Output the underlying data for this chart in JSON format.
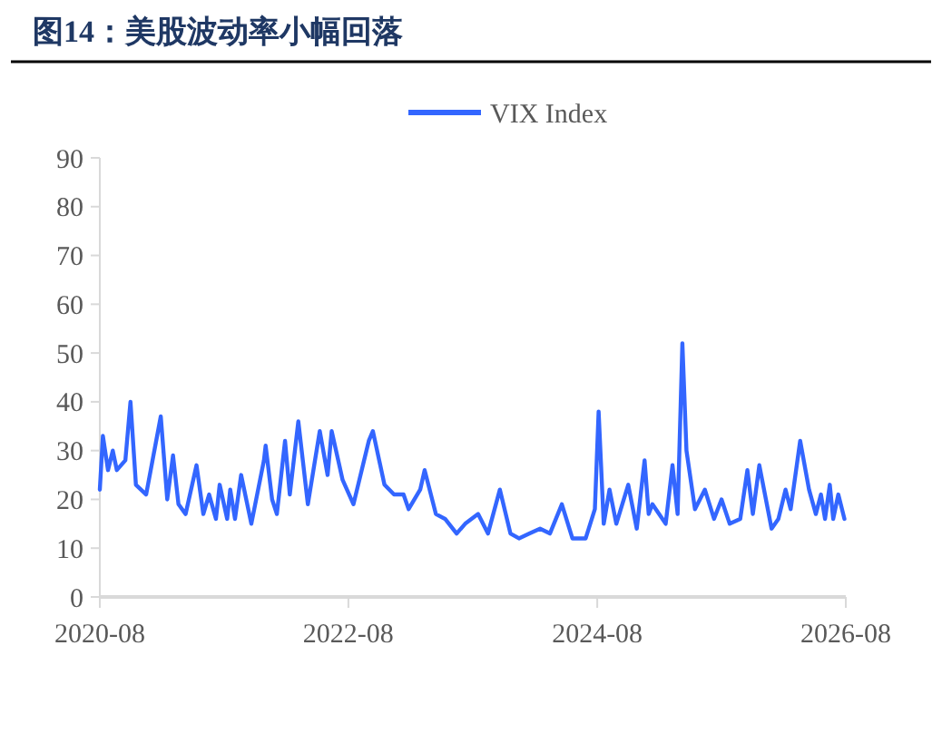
{
  "chart_data": {
    "type": "line",
    "title": "图14：美股波动率小幅回落",
    "x": [
      "2020-08-01",
      "2020-08-10",
      "2020-08-25",
      "2020-09-08",
      "2020-09-20",
      "2020-10-15",
      "2020-10-30",
      "2020-11-15",
      "2020-12-15",
      "2021-01-27",
      "2021-02-15",
      "2021-03-04",
      "2021-03-20",
      "2021-04-10",
      "2021-05-12",
      "2021-06-01",
      "2021-06-18",
      "2021-07-08",
      "2021-07-19",
      "2021-08-10",
      "2021-08-19",
      "2021-09-02",
      "2021-09-20",
      "2021-10-20",
      "2021-11-26",
      "2021-12-01",
      "2021-12-20",
      "2022-01-03",
      "2022-01-27",
      "2022-02-10",
      "2022-03-07",
      "2022-04-04",
      "2022-05-09",
      "2022-06-01",
      "2022-06-13",
      "2022-07-15",
      "2022-08-16",
      "2022-09-30",
      "2022-10-12",
      "2022-11-15",
      "2022-12-13",
      "2023-01-10",
      "2023-01-25",
      "2023-02-28",
      "2023-03-13",
      "2023-04-15",
      "2023-05-12",
      "2023-06-15",
      "2023-07-10",
      "2023-08-17",
      "2023-09-15",
      "2023-10-20",
      "2023-11-20",
      "2023-12-15",
      "2024-01-15",
      "2024-02-15",
      "2024-03-15",
      "2024-04-19",
      "2024-05-20",
      "2024-06-28",
      "2024-07-25",
      "2024-08-05",
      "2024-08-20",
      "2024-09-06",
      "2024-09-26",
      "2024-10-31",
      "2024-11-25",
      "2024-12-18",
      "2024-12-30",
      "2025-01-10",
      "2025-02-18",
      "2025-03-10",
      "2025-03-25",
      "2025-04-08",
      "2025-04-20",
      "2025-05-15",
      "2025-06-13",
      "2025-07-10",
      "2025-08-01",
      "2025-08-25",
      "2025-09-25",
      "2025-10-16",
      "2025-11-01",
      "2025-11-20",
      "2025-12-26",
      "2026-01-15",
      "2026-02-05",
      "2026-02-20",
      "2026-03-20",
      "2026-04-15",
      "2026-05-05",
      "2026-05-20",
      "2026-06-01",
      "2026-06-15",
      "2026-06-25",
      "2026-07-10",
      "2026-07-28"
    ],
    "series": [
      {
        "name": "VIX Index",
        "color": "#3366ff",
        "values": [
          22,
          33,
          26,
          30,
          26,
          28,
          40,
          23,
          21,
          37,
          20,
          29,
          19,
          17,
          27,
          17,
          21,
          16,
          23,
          16,
          22,
          16,
          25,
          15,
          28,
          31,
          20,
          17,
          32,
          21,
          36,
          19,
          34,
          25,
          34,
          24,
          19,
          32,
          34,
          23,
          21,
          21,
          18,
          22,
          26,
          17,
          16,
          13,
          15,
          17,
          13,
          22,
          13,
          12,
          13,
          14,
          13,
          19,
          12,
          12,
          18,
          38,
          15,
          22,
          15,
          23,
          14,
          28,
          17,
          19,
          15,
          27,
          17,
          52,
          30,
          18,
          22,
          16,
          20,
          15,
          16,
          26,
          17,
          27,
          14,
          16,
          22,
          18,
          32,
          22,
          17,
          21,
          16,
          23,
          16,
          21,
          16
        ]
      }
    ],
    "xlim": [
      "2020-08",
      "2026-08"
    ],
    "xticks": [
      "2020-08",
      "2022-08",
      "2024-08",
      "2026-08"
    ],
    "ylim": [
      0,
      90
    ],
    "yticks": [
      0,
      10,
      20,
      30,
      40,
      50,
      60,
      70,
      80,
      90
    ],
    "grid": false,
    "legend": "top",
    "marker": "none",
    "line_style": "solid"
  }
}
